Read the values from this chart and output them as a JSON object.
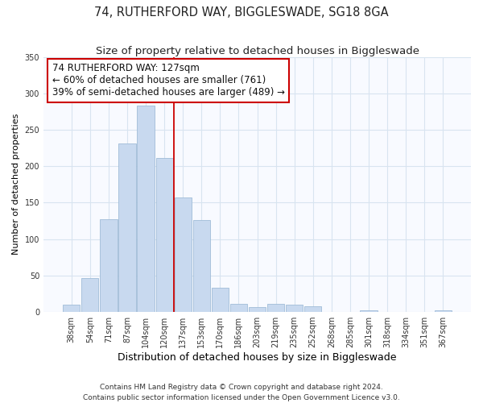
{
  "title": "74, RUTHERFORD WAY, BIGGLESWADE, SG18 8GA",
  "subtitle": "Size of property relative to detached houses in Biggleswade",
  "xlabel": "Distribution of detached houses by size in Biggleswade",
  "ylabel": "Number of detached properties",
  "categories": [
    "38sqm",
    "54sqm",
    "71sqm",
    "87sqm",
    "104sqm",
    "120sqm",
    "137sqm",
    "153sqm",
    "170sqm",
    "186sqm",
    "203sqm",
    "219sqm",
    "235sqm",
    "252sqm",
    "268sqm",
    "285sqm",
    "301sqm",
    "318sqm",
    "334sqm",
    "351sqm",
    "367sqm"
  ],
  "bar_heights": [
    10,
    47,
    127,
    231,
    283,
    211,
    157,
    126,
    33,
    11,
    7,
    11,
    10,
    8,
    0,
    0,
    2,
    0,
    0,
    0,
    2
  ],
  "bar_color": "#c8d9ef",
  "bar_edge_color": "#a0bcd8",
  "marker_line_color": "#cc0000",
  "marker_line_index": 5.5,
  "ylim": [
    0,
    350
  ],
  "yticks": [
    0,
    50,
    100,
    150,
    200,
    250,
    300,
    350
  ],
  "annotation_title": "74 RUTHERFORD WAY: 127sqm",
  "annotation_line1": "← 60% of detached houses are smaller (761)",
  "annotation_line2": "39% of semi-detached houses are larger (489) →",
  "annotation_box_color": "#ffffff",
  "annotation_box_edge": "#cc0000",
  "footer1": "Contains HM Land Registry data © Crown copyright and database right 2024.",
  "footer2": "Contains public sector information licensed under the Open Government Licence v3.0.",
  "bg_color": "#ffffff",
  "plot_bg_color": "#f8faff",
  "grid_color": "#d8e4f0",
  "title_fontsize": 10.5,
  "subtitle_fontsize": 9.5,
  "xlabel_fontsize": 9,
  "ylabel_fontsize": 8,
  "tick_fontsize": 7,
  "annotation_fontsize": 8.5,
  "footer_fontsize": 6.5
}
